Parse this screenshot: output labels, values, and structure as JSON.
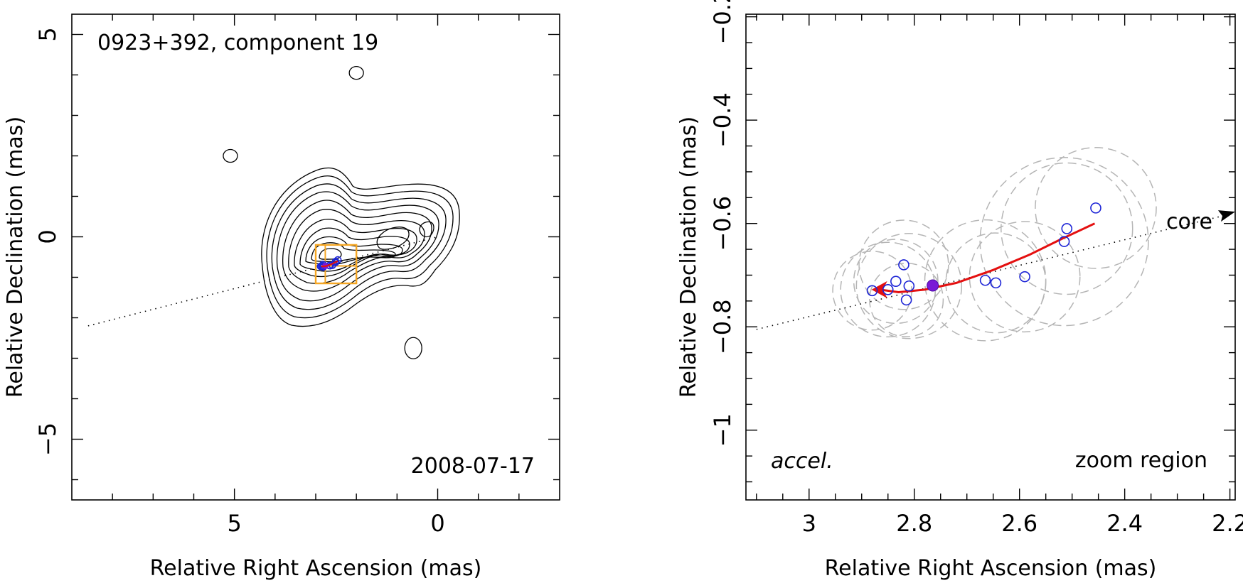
{
  "chart_data": [
    {
      "type": "contour",
      "panel": "left",
      "title": "0923+392, component 19",
      "date_label": "2008-07-17",
      "xlabel": "Relative Right Ascension (mas)",
      "ylabel": "Relative Declination (mas)",
      "xlim": [
        9.0,
        -3.0
      ],
      "ylim": [
        -6.5,
        5.5
      ],
      "xticks": [
        5,
        0
      ],
      "xtick_labels": [
        "5",
        "0"
      ],
      "yticks": [
        5,
        0,
        -5
      ],
      "ytick_labels": [
        "5",
        "0",
        "−5"
      ],
      "ridge_line": {
        "from": [
          8.6,
          -2.2
        ],
        "to": [
          0.0,
          0.0
        ]
      },
      "zoom_box": {
        "x": [
          2.0,
          3.0
        ],
        "y": [
          -1.15,
          -0.2
        ]
      },
      "isolated_contours": [
        [
          5.1,
          2.0
        ],
        [
          2.0,
          4.05
        ],
        [
          0.6,
          -2.75
        ]
      ]
    },
    {
      "type": "scatter",
      "panel": "right",
      "label_core": "core",
      "label_accel": "accel.",
      "label_zoom": "zoom region",
      "xlabel": "Relative Right Ascension (mas)",
      "ylabel": "Relative Declination (mas)",
      "xlim": [
        3.12,
        2.19
      ],
      "ylim": [
        -1.135,
        -0.195
      ],
      "xticks": [
        3.0,
        2.8,
        2.6,
        2.4,
        2.2
      ],
      "xtick_labels": [
        "3",
        "2.8",
        "2.6",
        "2.4",
        "2.2"
      ],
      "yticks": [
        -0.2,
        -0.4,
        -0.6,
        -0.8,
        -1.0
      ],
      "ytick_labels": [
        "−0.2",
        "−0.4",
        "−0.6",
        "−0.8",
        "−1"
      ],
      "observed_positions": [
        {
          "x": 2.88,
          "y": -0.73
        },
        {
          "x": 2.85,
          "y": -0.728
        },
        {
          "x": 2.835,
          "y": -0.712
        },
        {
          "x": 2.82,
          "y": -0.68
        },
        {
          "x": 2.81,
          "y": -0.721
        },
        {
          "x": 2.815,
          "y": -0.748
        },
        {
          "x": 2.665,
          "y": -0.71
        },
        {
          "x": 2.645,
          "y": -0.715
        },
        {
          "x": 2.59,
          "y": -0.703
        },
        {
          "x": 2.515,
          "y": -0.635
        },
        {
          "x": 2.51,
          "y": -0.61
        },
        {
          "x": 2.455,
          "y": -0.57
        }
      ],
      "reference_position": {
        "x": 2.765,
        "y": -0.72
      },
      "fitted_trajectory": [
        {
          "x": 2.457,
          "y": -0.6
        },
        {
          "x": 2.52,
          "y": -0.63
        },
        {
          "x": 2.58,
          "y": -0.66
        },
        {
          "x": 2.65,
          "y": -0.69
        },
        {
          "x": 2.72,
          "y": -0.715
        },
        {
          "x": 2.78,
          "y": -0.728
        },
        {
          "x": 2.83,
          "y": -0.733
        },
        {
          "x": 2.865,
          "y": -0.728
        }
      ],
      "position_uncertainty_circles": [
        {
          "x": 2.88,
          "y": -0.73,
          "r": 0.075
        },
        {
          "x": 2.85,
          "y": -0.728,
          "r": 0.09
        },
        {
          "x": 2.835,
          "y": -0.712,
          "r": 0.08
        },
        {
          "x": 2.82,
          "y": -0.68,
          "r": 0.085
        },
        {
          "x": 2.81,
          "y": -0.721,
          "r": 0.1
        },
        {
          "x": 2.815,
          "y": -0.748,
          "r": 0.07
        },
        {
          "x": 2.665,
          "y": -0.71,
          "r": 0.115
        },
        {
          "x": 2.645,
          "y": -0.715,
          "r": 0.095
        },
        {
          "x": 2.59,
          "y": -0.703,
          "r": 0.105
        },
        {
          "x": 2.515,
          "y": -0.635,
          "r": 0.16
        },
        {
          "x": 2.51,
          "y": -0.61,
          "r": 0.125
        },
        {
          "x": 2.455,
          "y": -0.57,
          "r": 0.115
        }
      ],
      "ridge_line": {
        "from": [
          3.1,
          -0.805
        ],
        "to": [
          2.19,
          -0.58
        ]
      }
    }
  ]
}
